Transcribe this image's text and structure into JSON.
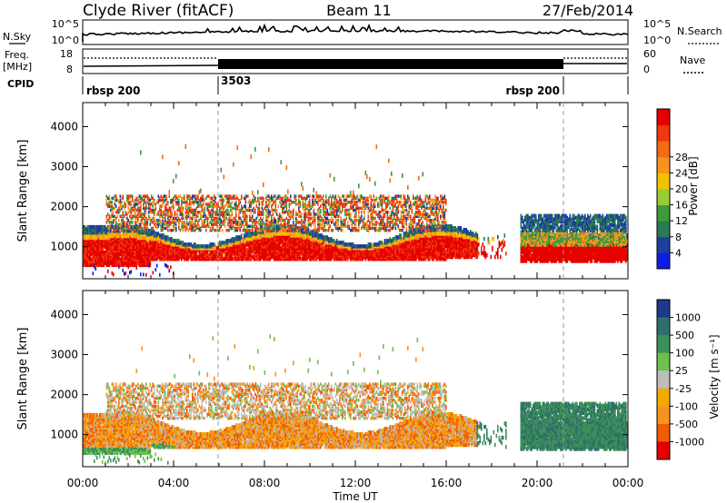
{
  "header": {
    "station": "Clyde River (fitACF)",
    "beam": "Beam 11",
    "date": "27/Feb/2014"
  },
  "nsky_panel": {
    "left_label": "N.Sky",
    "left_ticks": [
      "10^5",
      "10^0"
    ],
    "right_ticks": [
      "10^5",
      "10^0"
    ],
    "right_label": "N.Search"
  },
  "freq_panel": {
    "left_label_1": "Freq.",
    "left_label_2": "[MHz]",
    "left_ticks": [
      "18",
      "8"
    ],
    "right_ticks": [
      "60",
      "0"
    ],
    "right_label": "Nave"
  },
  "cpid": {
    "label": "CPID",
    "entries": [
      "rbsp 200",
      "3503",
      "rbsp 200"
    ]
  },
  "chart_data": [
    {
      "type": "heatmap",
      "name": "power",
      "ylabel": "Slant Range [km]",
      "yticks": [
        "1000",
        "2000",
        "3000",
        "4000"
      ],
      "ylim": [
        200,
        4600
      ],
      "xlim_hours": [
        0,
        24
      ],
      "colorbar": {
        "label": "Power [dB]",
        "ticks": [
          "4",
          "8",
          "12",
          "16",
          "20",
          "24",
          "28"
        ],
        "colors": [
          "#0b1ee6",
          "#1e3f9e",
          "#2a7a56",
          "#3e9a3c",
          "#9acd32",
          "#f2c200",
          "#f7941d",
          "#f36b12",
          "#ee3a0e",
          "#e60000"
        ]
      }
    },
    {
      "type": "heatmap",
      "name": "velocity",
      "ylabel": "Slant Range [km]",
      "yticks": [
        "1000",
        "2000",
        "3000",
        "4000"
      ],
      "ylim": [
        200,
        4600
      ],
      "xlim_hours": [
        0,
        24
      ],
      "colorbar": {
        "label": "Velocity [m s⁻¹]",
        "ticks": [
          "1000",
          "500",
          "100",
          "25",
          "-25",
          "-100",
          "-500",
          "-1000"
        ],
        "colors": [
          "#1d3a8f",
          "#2f6f6a",
          "#3d8f5a",
          "#6cc24a",
          "#bdbdbd",
          "#f2a900",
          "#f7941d",
          "#f25c00",
          "#e60000"
        ]
      }
    }
  ],
  "time_axis": {
    "ticks": [
      "00:00",
      "04:00",
      "08:00",
      "12:00",
      "16:00",
      "20:00",
      "00:00"
    ],
    "label": "Time UT"
  }
}
